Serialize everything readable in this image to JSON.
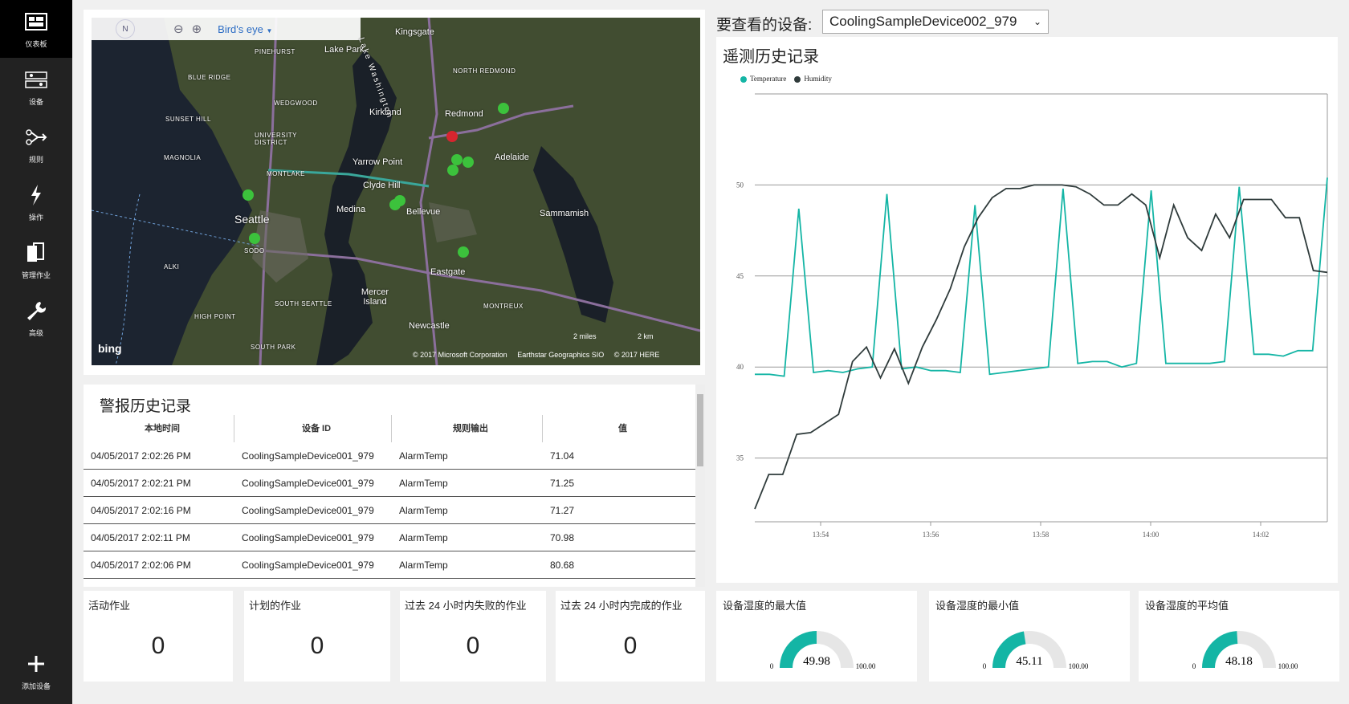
{
  "sidebar": {
    "items": [
      {
        "label": "仪表板",
        "icon": "dashboard-icon"
      },
      {
        "label": "设备",
        "icon": "devices-icon"
      },
      {
        "label": "规则",
        "icon": "rules-icon"
      },
      {
        "label": "操作",
        "icon": "actions-icon"
      },
      {
        "label": "管理作业",
        "icon": "jobs-icon"
      },
      {
        "label": "高级",
        "icon": "wrench-icon"
      }
    ],
    "add_device_label": "添加设备"
  },
  "map": {
    "view_mode": "Bird's eye",
    "compass": "N",
    "brand": "bing",
    "scale_miles": "2 miles",
    "scale_km": "2 km",
    "copyright": "© 2017 Microsoft Corporation     Earthstar Geographics SIO     © 2017 HERE",
    "labels": {
      "seattle": "Seattle",
      "bellevue": "Bellevue",
      "redmond": "Redmond",
      "kirkland": "Kirkland",
      "kingsgate": "Kingsgate",
      "lake_park": "Lake Park",
      "pinehurst": "PINEHURST",
      "blue_ridge": "BLUE RIDGE",
      "sunset_hill": "SUNSET HILL",
      "magnolia": "MAGNOLIA",
      "wedgwood": "WEDGWOOD",
      "university_district": "UNIVERSITY DISTRICT",
      "montlake": "MONTLAKE",
      "yarrow_point": "Yarrow Point",
      "clyde_hill": "Clyde Hill",
      "medina": "Medina",
      "adelaide": "Adelaide",
      "north_redmond": "NORTH REDMOND",
      "sammamish": "Sammamish",
      "eastgate": "Eastgate",
      "mercer_island": "Mercer Island",
      "south_seattle": "SOUTH SEATTLE",
      "montreux": "MONTREUX",
      "newcastle": "Newcastle",
      "high_point": "HIGH POINT",
      "south_park": "SOUTH PARK",
      "alki": "ALKI",
      "sodo": "SODO",
      "lake_washington": "Lake Washington"
    }
  },
  "alerts": {
    "title": "警报历史记录",
    "columns": [
      "本地时间",
      "设备 ID",
      "规则输出",
      "值"
    ],
    "rows": [
      [
        "04/05/2017 2:02:26 PM",
        "CoolingSampleDevice001_979",
        "AlarmTemp",
        "71.04"
      ],
      [
        "04/05/2017 2:02:21 PM",
        "CoolingSampleDevice001_979",
        "AlarmTemp",
        "71.25"
      ],
      [
        "04/05/2017 2:02:16 PM",
        "CoolingSampleDevice001_979",
        "AlarmTemp",
        "71.27"
      ],
      [
        "04/05/2017 2:02:11 PM",
        "CoolingSampleDevice001_979",
        "AlarmTemp",
        "70.98"
      ],
      [
        "04/05/2017 2:02:06 PM",
        "CoolingSampleDevice001_979",
        "AlarmTemp",
        "80.68"
      ]
    ]
  },
  "device_select": {
    "label": "要查看的设备:",
    "value": "CoolingSampleDevice002_979"
  },
  "telemetry": {
    "title": "遥测历史记录"
  },
  "chart_data": {
    "type": "line",
    "title": "遥测历史记录",
    "xlabel": "",
    "ylabel": "",
    "ylim": [
      31.5,
      55
    ],
    "yticks": [
      35,
      40,
      45,
      50
    ],
    "xticks": [
      "13:54",
      "13:56",
      "13:58",
      "14:00",
      "14:02"
    ],
    "legend_position": "top-left",
    "grid": true,
    "series": [
      {
        "name": "Temperature",
        "color": "#14b5a5",
        "values": [
          39.6,
          39.6,
          39.5,
          48.7,
          39.7,
          39.8,
          39.7,
          39.9,
          40.0,
          49.5,
          39.9,
          40.0,
          39.8,
          39.8,
          39.7,
          48.9,
          39.6,
          39.7,
          39.8,
          39.9,
          40.0,
          49.8,
          40.2,
          40.3,
          40.3,
          40.0,
          40.2,
          49.7,
          40.2,
          40.2,
          40.2,
          40.2,
          40.3,
          49.9,
          40.7,
          40.7,
          40.6,
          40.9,
          40.9,
          50.4
        ]
      },
      {
        "name": "Humidity",
        "color": "#2f3b3b",
        "values": [
          32.2,
          34.1,
          34.1,
          36.3,
          36.4,
          36.9,
          37.4,
          40.3,
          41.1,
          39.4,
          41.0,
          39.1,
          41.1,
          42.6,
          44.3,
          46.6,
          48.2,
          49.3,
          49.8,
          49.8,
          50.0,
          50.0,
          50.0,
          49.9,
          49.5,
          48.9,
          48.9,
          49.5,
          48.9,
          46.0,
          48.9,
          47.1,
          46.4,
          48.4,
          47.1,
          49.2,
          49.2,
          49.2,
          48.2,
          48.2,
          45.3,
          45.2
        ]
      }
    ]
  },
  "jobs": [
    {
      "title": "活动作业",
      "value": "0"
    },
    {
      "title": "计划的作业",
      "value": "0"
    },
    {
      "title": "过去 24 小时内失败的作业",
      "value": "0"
    },
    {
      "title": "过去 24 小时内完成的作业",
      "value": "0"
    }
  ],
  "gauges": [
    {
      "title": "设备湿度的最大值",
      "value": "49.98",
      "min": "0",
      "max": "100.00",
      "fraction": 0.4998,
      "color": "#14b5a5"
    },
    {
      "title": "设备湿度的最小值",
      "value": "45.11",
      "min": "0",
      "max": "100.00",
      "fraction": 0.4511,
      "color": "#14b5a5"
    },
    {
      "title": "设备湿度的平均值",
      "value": "48.18",
      "min": "0",
      "max": "100.00",
      "fraction": 0.4818,
      "color": "#14b5a5"
    }
  ]
}
